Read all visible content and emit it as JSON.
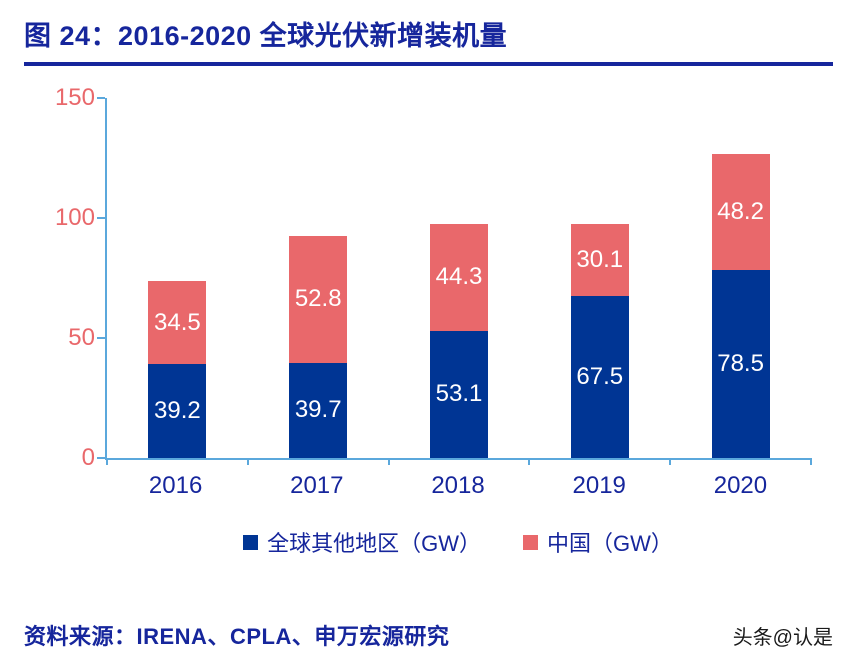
{
  "header": {
    "title": "图 24：2016-2020 全球光伏新增装机量"
  },
  "chart_data": {
    "type": "bar",
    "stacked": true,
    "title": "图 24：2016-2020 全球光伏新增装机量",
    "categories": [
      "2016",
      "2017",
      "2018",
      "2019",
      "2020"
    ],
    "series": [
      {
        "name": "全球其他地区（GW）",
        "color": "#003594",
        "values": [
          39.2,
          39.7,
          53.1,
          67.5,
          78.5
        ]
      },
      {
        "name": "中国（GW）",
        "color": "#e9686b",
        "values": [
          34.5,
          52.8,
          44.3,
          30.1,
          48.2
        ]
      }
    ],
    "xlabel": "",
    "ylabel": "",
    "ylim": [
      0,
      150
    ],
    "yticks": [
      0,
      50,
      100,
      150
    ],
    "grid": false,
    "legend_position": "bottom",
    "value_labels": "inside-white"
  },
  "colors": {
    "title_blue": "#16269c",
    "axis_light_blue": "#5ba8dc",
    "y_tick_label": "#e9686b",
    "x_tick_label": "#16269c",
    "series_other": "#003594",
    "series_china": "#e9686b"
  },
  "footer": {
    "source": "资料来源：IRENA、CPLA、申万宏源研究",
    "watermark": "头条@认是"
  }
}
